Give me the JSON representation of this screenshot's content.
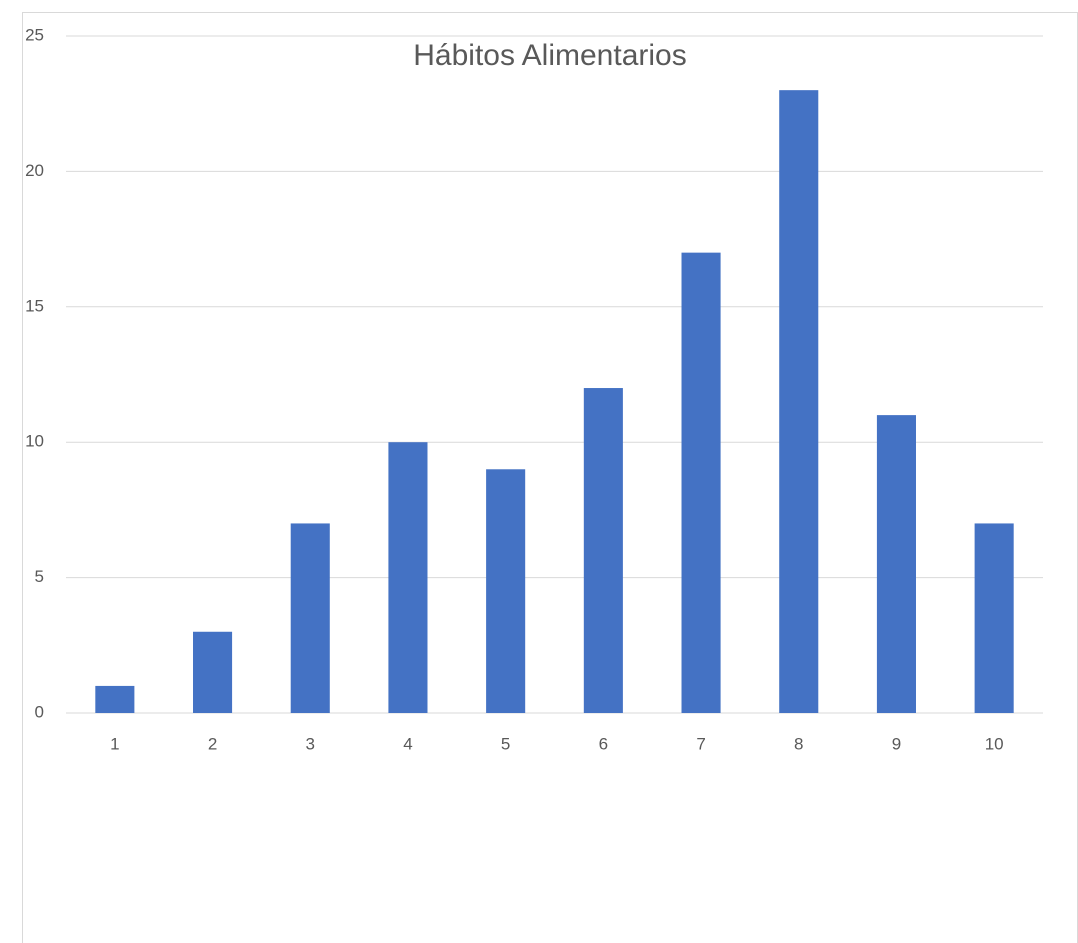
{
  "chart_data": {
    "type": "bar",
    "title": "Hábitos Alimentarios",
    "categories": [
      "1",
      "2",
      "3",
      "4",
      "5",
      "6",
      "7",
      "8",
      "9",
      "10"
    ],
    "values": [
      1,
      3,
      7,
      10,
      9,
      12,
      17,
      23,
      11,
      7
    ],
    "color": "#4472c4",
    "ylim": [
      0,
      25
    ],
    "yticks": [
      0,
      5,
      10,
      15,
      20,
      25
    ],
    "grid": true
  }
}
